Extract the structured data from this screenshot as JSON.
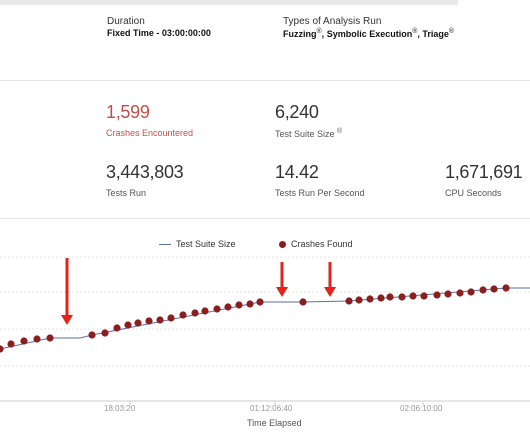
{
  "run": {
    "duration_label": "Duration",
    "duration_value": "Fixed Time - 03:00:00:00",
    "types_label": "Types of Analysis Run",
    "types": [
      "Fuzzing",
      "Symbolic Execution",
      "Triage"
    ],
    "info_symbol": "®"
  },
  "stats": {
    "crashes": {
      "value": "1,599",
      "label": "Crashes Encountered"
    },
    "suite_size": {
      "value": "6,240",
      "label": "Test Suite Size"
    },
    "tests_run": {
      "value": "3,443,803",
      "label": "Tests Run"
    },
    "tests_per_sec": {
      "value": "14.42",
      "label": "Tests Run Per Second"
    },
    "cpu_seconds": {
      "value": "1,671,691",
      "label": "CPU Seconds"
    }
  },
  "chart": {
    "legend": {
      "suite": "Test Suite Size",
      "crashes": "Crashes Found"
    },
    "x_title": "Time Elapsed",
    "x_ticks": [
      "18:03:20",
      "01:12:06:40",
      "02:06:10:00"
    ],
    "colors": {
      "line": "#5b6ea3",
      "dot": "#8b1f1f",
      "arrow": "#e2231a"
    }
  },
  "chart_data": {
    "type": "line",
    "series": [
      {
        "name": "Crashes Found",
        "points": [
          [
            0,
            349
          ],
          [
            11,
            344
          ],
          [
            24,
            341
          ],
          [
            37,
            339
          ],
          [
            50,
            338
          ],
          [
            92,
            335
          ],
          [
            105,
            333
          ],
          [
            117,
            328
          ],
          [
            128,
            325
          ],
          [
            138,
            323
          ],
          [
            149,
            321
          ],
          [
            160,
            320
          ],
          [
            171,
            318
          ],
          [
            183,
            315
          ],
          [
            195,
            313
          ],
          [
            205,
            311
          ],
          [
            217,
            309
          ],
          [
            228,
            307
          ],
          [
            239,
            305
          ],
          [
            250,
            304
          ],
          [
            260,
            302
          ],
          [
            303,
            302
          ],
          [
            349,
            301
          ],
          [
            359,
            300
          ],
          [
            370,
            299
          ],
          [
            381,
            298
          ],
          [
            390,
            297
          ],
          [
            402,
            297
          ],
          [
            413,
            296
          ],
          [
            424,
            296
          ],
          [
            437,
            295
          ],
          [
            448,
            294
          ],
          [
            460,
            293
          ],
          [
            471,
            292
          ],
          [
            483,
            290
          ],
          [
            494,
            289
          ],
          [
            506,
            288
          ]
        ]
      }
    ],
    "test_suite_size_line": [
      [
        0,
        349
      ],
      [
        50,
        338
      ],
      [
        80,
        338
      ],
      [
        92,
        335
      ],
      [
        260,
        302
      ],
      [
        303,
        302
      ],
      [
        349,
        301
      ],
      [
        506,
        288
      ],
      [
        530,
        288
      ]
    ],
    "arrows_at_x": [
      67,
      282,
      330
    ]
  }
}
